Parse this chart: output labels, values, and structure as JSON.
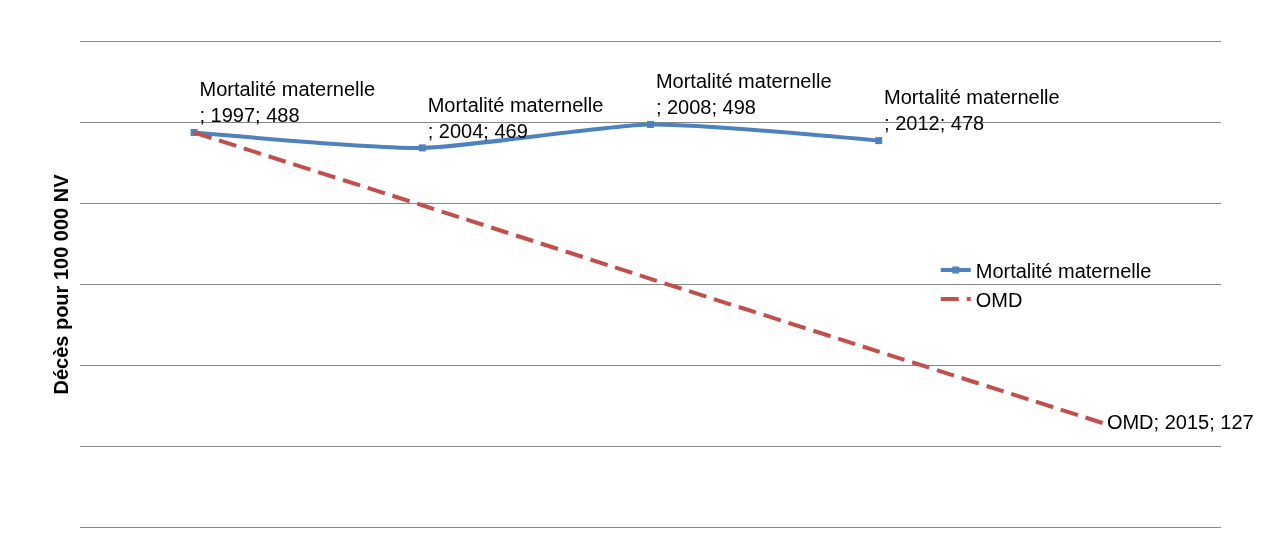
{
  "chart_data": {
    "type": "line",
    "ylabel": "Décès pour 100 000 NV",
    "categories": [
      null,
      null,
      null,
      null,
      null
    ],
    "series": [
      {
        "name": "Mortalité maternelle",
        "color": "#4f81bd",
        "marker": "square",
        "line_style": "solid",
        "values": [
          488,
          469,
          498,
          478,
          null
        ],
        "value_labels": [
          "Mortalité maternelle\n; 1997; 488",
          "Mortalité maternelle\n; 2004; 469",
          "Mortalité maternelle\n; 2008; 498",
          "Mortalité maternelle\n; 2012; 478",
          null
        ]
      },
      {
        "name": "OMD",
        "color": "#c0504d",
        "marker": "none",
        "line_style": "dashed",
        "values": [
          488,
          398,
          307,
          217,
          127
        ],
        "value_labels": [
          null,
          null,
          null,
          null,
          "OMD; 2015; 127"
        ]
      }
    ],
    "ylim": [
      0,
      600
    ],
    "yticks": [
      {
        "value": 100,
        "label": null
      },
      {
        "value": 200,
        "label": null
      },
      {
        "value": 300,
        "label": null
      },
      {
        "value": 400,
        "label": null
      },
      {
        "value": 500,
        "label": null
      }
    ],
    "grid": "y",
    "legend": "right"
  }
}
